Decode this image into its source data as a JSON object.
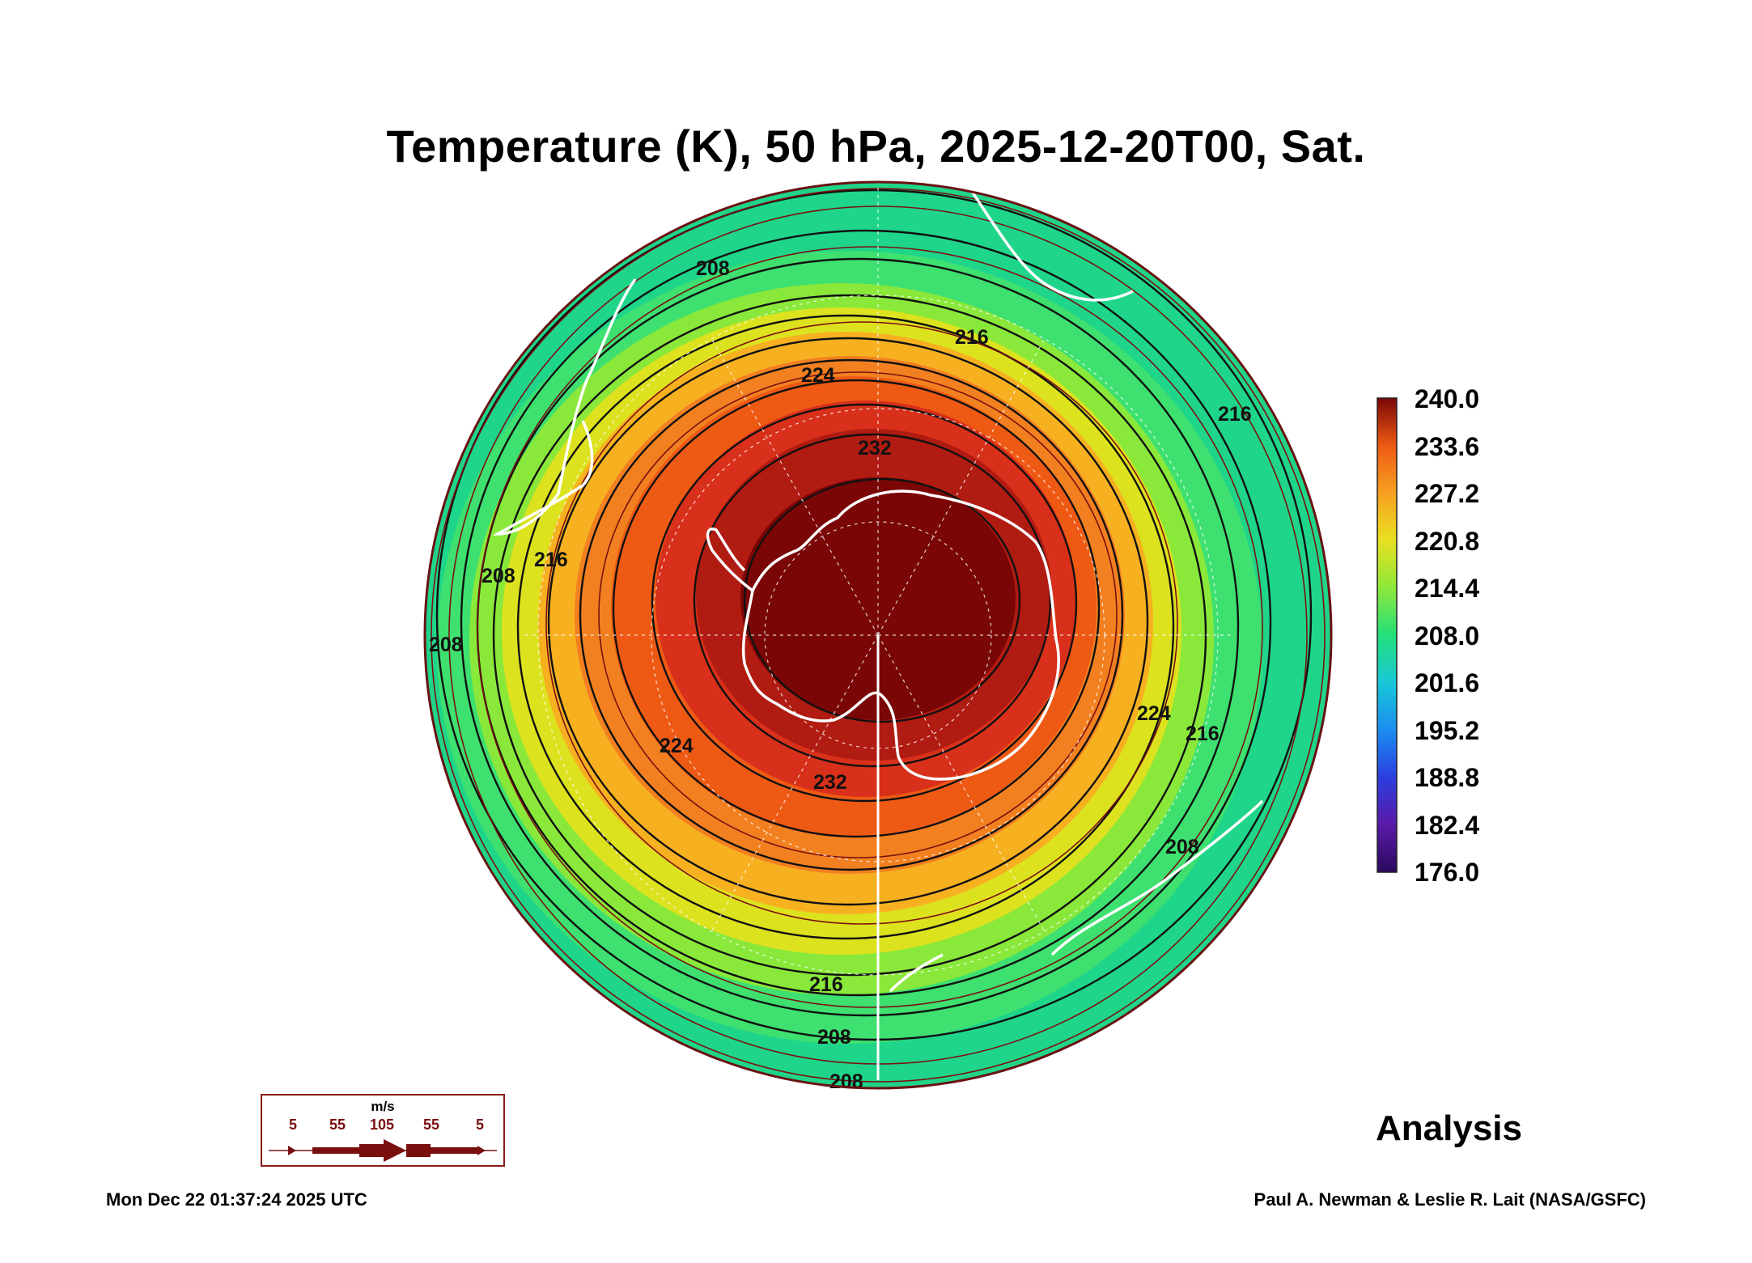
{
  "title": "Temperature (K), 50 hPa, 2025-12-20T00, Sat.",
  "colorbar": {
    "labels": [
      "240.0",
      "233.6",
      "227.2",
      "220.8",
      "214.4",
      "208.0",
      "201.6",
      "195.2",
      "188.8",
      "182.4",
      "176.0"
    ],
    "min": 176.0,
    "max": 240.0,
    "colors": [
      "#2a0a5e",
      "#5a1aa8",
      "#2b3fe0",
      "#1b8ef0",
      "#18c8d8",
      "#22e07a",
      "#8ee83a",
      "#e8e020",
      "#f7a020",
      "#ee5a14",
      "#c81e10",
      "#7a0606"
    ]
  },
  "contour_labels": [
    "208",
    "208",
    "216",
    "224",
    "232",
    "216",
    "208",
    "216",
    "224",
    "232",
    "224",
    "216",
    "208",
    "216",
    "208",
    "208"
  ],
  "analysis_label": "Analysis",
  "legend": {
    "unit": "m/s",
    "speeds": [
      "5",
      "55",
      "105",
      "55",
      "5"
    ],
    "arrow_color": "#7a0f0f"
  },
  "footer": {
    "timestamp": "Mon Dec 22 01:37:24 2025 UTC",
    "credit": "Paul A. Newman & Leslie R. Lait (NASA/GSFC)"
  }
}
